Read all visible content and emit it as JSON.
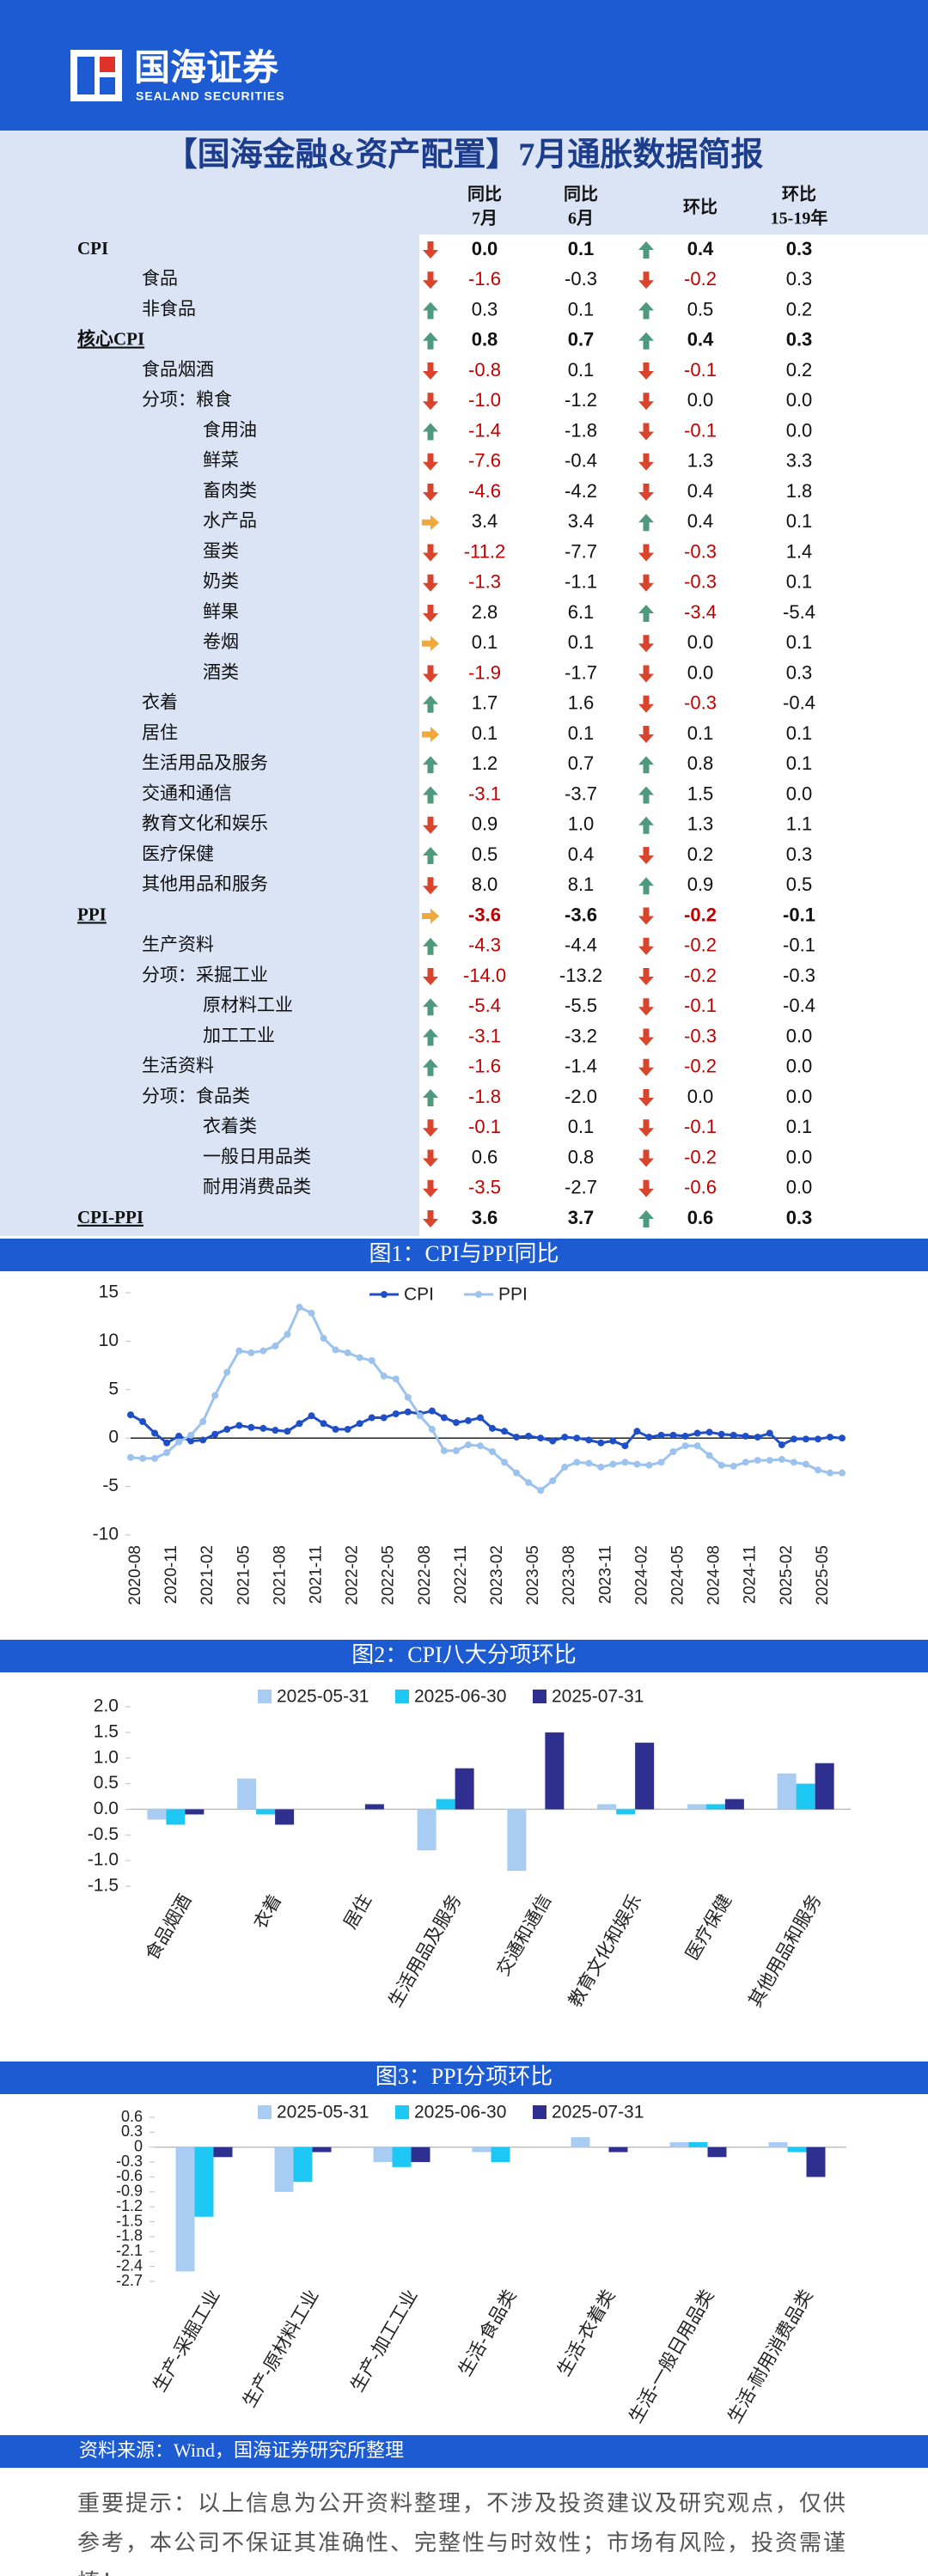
{
  "header": {
    "brand": "国海证券",
    "brand_en": "SEALAND SECURITIES"
  },
  "title": "【国海金融&资产配置】7月通胀数据简报",
  "table": {
    "columns": [
      {
        "top": "同比",
        "bottom": "7月"
      },
      {
        "top": "同比",
        "bottom": "6月"
      },
      {
        "top": "环比"
      },
      {
        "top": "环比",
        "bottom": "15-19年"
      }
    ],
    "rows": [
      {
        "label": "CPI",
        "level": 0,
        "bold": true,
        "values": [
          "0.0",
          "0.1",
          "0.4",
          "0.3"
        ],
        "arrows": [
          "down",
          "up"
        ]
      },
      {
        "label": "食品",
        "level": 1,
        "values": [
          "-1.6",
          "-0.3",
          "-0.2",
          "0.3"
        ],
        "arrows": [
          "down",
          "down"
        ]
      },
      {
        "label": "非食品",
        "level": 1,
        "values": [
          "0.3",
          "0.1",
          "0.5",
          "0.2"
        ],
        "arrows": [
          "up",
          "up"
        ]
      },
      {
        "label": "核心CPI",
        "level": 0,
        "bold": true,
        "underline": true,
        "values": [
          "0.8",
          "0.7",
          "0.4",
          "0.3"
        ],
        "arrows": [
          "up",
          "up"
        ]
      },
      {
        "label": "食品烟酒",
        "level": 1,
        "values": [
          "-0.8",
          "0.1",
          "-0.1",
          "0.2"
        ],
        "arrows": [
          "down",
          "down"
        ]
      },
      {
        "label": "分项：粮食",
        "level": 1,
        "values": [
          "-1.0",
          "-1.2",
          "0.0",
          "0.0"
        ],
        "arrows": [
          "down",
          "down"
        ]
      },
      {
        "label": "食用油",
        "level": 2,
        "values": [
          "-1.4",
          "-1.8",
          "-0.1",
          "0.0"
        ],
        "arrows": [
          "up",
          "down"
        ]
      },
      {
        "label": "鲜菜",
        "level": 2,
        "values": [
          "-7.6",
          "-0.4",
          "1.3",
          "3.3"
        ],
        "arrows": [
          "down",
          "down"
        ]
      },
      {
        "label": "畜肉类",
        "level": 2,
        "values": [
          "-4.6",
          "-4.2",
          "0.4",
          "1.8"
        ],
        "arrows": [
          "down",
          "down"
        ]
      },
      {
        "label": "水产品",
        "level": 2,
        "values": [
          "3.4",
          "3.4",
          "0.4",
          "0.1"
        ],
        "arrows": [
          "flat",
          "up"
        ]
      },
      {
        "label": "蛋类",
        "level": 2,
        "values": [
          "-11.2",
          "-7.7",
          "-0.3",
          "1.4"
        ],
        "arrows": [
          "down",
          "down"
        ]
      },
      {
        "label": "奶类",
        "level": 2,
        "values": [
          "-1.3",
          "-1.1",
          "-0.3",
          "0.1"
        ],
        "arrows": [
          "down",
          "down"
        ]
      },
      {
        "label": "鲜果",
        "level": 2,
        "values": [
          "2.8",
          "6.1",
          "-3.4",
          "-5.4"
        ],
        "arrows": [
          "down",
          "up"
        ]
      },
      {
        "label": "卷烟",
        "level": 2,
        "values": [
          "0.1",
          "0.1",
          "0.0",
          "0.1"
        ],
        "arrows": [
          "flat",
          "down"
        ]
      },
      {
        "label": "酒类",
        "level": 2,
        "values": [
          "-1.9",
          "-1.7",
          "0.0",
          "0.3"
        ],
        "arrows": [
          "down",
          "down"
        ]
      },
      {
        "label": "衣着",
        "level": 1,
        "values": [
          "1.7",
          "1.6",
          "-0.3",
          "-0.4"
        ],
        "arrows": [
          "up",
          "down"
        ]
      },
      {
        "label": "居住",
        "level": 1,
        "values": [
          "0.1",
          "0.1",
          "0.1",
          "0.1"
        ],
        "arrows": [
          "flat",
          "down"
        ]
      },
      {
        "label": "生活用品及服务",
        "level": 1,
        "values": [
          "1.2",
          "0.7",
          "0.8",
          "0.1"
        ],
        "arrows": [
          "up",
          "up"
        ]
      },
      {
        "label": "交通和通信",
        "level": 1,
        "values": [
          "-3.1",
          "-3.7",
          "1.5",
          "0.0"
        ],
        "arrows": [
          "up",
          "up"
        ]
      },
      {
        "label": "教育文化和娱乐",
        "level": 1,
        "values": [
          "0.9",
          "1.0",
          "1.3",
          "1.1"
        ],
        "arrows": [
          "down",
          "up"
        ]
      },
      {
        "label": "医疗保健",
        "level": 1,
        "values": [
          "0.5",
          "0.4",
          "0.2",
          "0.3"
        ],
        "arrows": [
          "up",
          "down"
        ]
      },
      {
        "label": "其他用品和服务",
        "level": 1,
        "values": [
          "8.0",
          "8.1",
          "0.9",
          "0.5"
        ],
        "arrows": [
          "down",
          "up"
        ]
      },
      {
        "label": "PPI",
        "level": 0,
        "bold": true,
        "underline": true,
        "values": [
          "-3.6",
          "-3.6",
          "-0.2",
          "-0.1"
        ],
        "arrows": [
          "flat",
          "down"
        ]
      },
      {
        "label": "生产资料",
        "level": 1,
        "values": [
          "-4.3",
          "-4.4",
          "-0.2",
          "-0.1"
        ],
        "arrows": [
          "up",
          "down"
        ]
      },
      {
        "label": "分项：采掘工业",
        "level": 1,
        "values": [
          "-14.0",
          "-13.2",
          "-0.2",
          "-0.3"
        ],
        "arrows": [
          "down",
          "down"
        ]
      },
      {
        "label": "原材料工业",
        "level": 2,
        "values": [
          "-5.4",
          "-5.5",
          "-0.1",
          "-0.4"
        ],
        "arrows": [
          "up",
          "down"
        ]
      },
      {
        "label": "加工工业",
        "level": 2,
        "values": [
          "-3.1",
          "-3.2",
          "-0.3",
          "0.0"
        ],
        "arrows": [
          "up",
          "down"
        ]
      },
      {
        "label": "生活资料",
        "level": 1,
        "values": [
          "-1.6",
          "-1.4",
          "-0.2",
          "0.0"
        ],
        "arrows": [
          "up",
          "down"
        ]
      },
      {
        "label": "分项：食品类",
        "level": 1,
        "values": [
          "-1.8",
          "-2.0",
          "0.0",
          "0.0"
        ],
        "arrows": [
          "up",
          "down"
        ]
      },
      {
        "label": "衣着类",
        "level": 2,
        "values": [
          "-0.1",
          "0.1",
          "-0.1",
          "0.1"
        ],
        "arrows": [
          "down",
          "down"
        ]
      },
      {
        "label": "一般日用品类",
        "level": 2,
        "values": [
          "0.6",
          "0.8",
          "-0.2",
          "0.0"
        ],
        "arrows": [
          "down",
          "down"
        ]
      },
      {
        "label": "耐用消费品类",
        "level": 2,
        "values": [
          "-3.5",
          "-2.7",
          "-0.6",
          "0.0"
        ],
        "arrows": [
          "down",
          "down"
        ]
      },
      {
        "label": "CPI-PPI",
        "level": 0,
        "bold": true,
        "underline": true,
        "values": [
          "3.6",
          "3.7",
          "0.6",
          "0.3"
        ],
        "arrows": [
          "down",
          "up"
        ]
      }
    ]
  },
  "chart_data": [
    {
      "type": "line",
      "title": "图1：CPI与PPI同比",
      "categories": [
        "2020-08",
        null,
        null,
        "2020-11",
        null,
        null,
        "2021-02",
        null,
        null,
        "2021-05",
        null,
        null,
        "2021-08",
        null,
        null,
        "2021-11",
        null,
        null,
        "2022-02",
        null,
        null,
        "2022-05",
        null,
        null,
        "2022-08",
        null,
        null,
        "2022-11",
        null,
        null,
        "2023-02",
        null,
        null,
        "2023-05",
        null,
        null,
        "2023-08",
        null,
        null,
        "2023-11",
        null,
        null,
        "2024-02",
        null,
        null,
        "2024-05",
        null,
        null,
        "2024-08",
        null,
        null,
        "2024-11",
        null,
        null,
        "2025-02",
        null,
        null,
        "2025-05",
        null,
        null
      ],
      "series": [
        {
          "name": "CPI",
          "color": "#1f4fc6",
          "values": [
            2.4,
            1.7,
            0.5,
            -0.5,
            0.2,
            -0.3,
            -0.2,
            0.4,
            0.9,
            1.3,
            1.1,
            1.0,
            0.8,
            0.7,
            1.5,
            2.3,
            1.5,
            0.9,
            0.9,
            1.5,
            2.1,
            2.1,
            2.5,
            2.7,
            2.5,
            2.8,
            2.1,
            1.6,
            1.8,
            2.1,
            1.0,
            0.7,
            0.1,
            0.2,
            0.0,
            -0.3,
            0.1,
            0.0,
            -0.2,
            -0.5,
            -0.3,
            -0.8,
            0.7,
            0.1,
            0.3,
            0.3,
            0.2,
            0.5,
            0.6,
            0.4,
            0.3,
            0.2,
            0.1,
            0.5,
            -0.7,
            -0.1,
            -0.1,
            -0.1,
            0.1,
            0.0
          ]
        },
        {
          "name": "PPI",
          "color": "#9cc3ee",
          "values": [
            -2.0,
            -2.1,
            -2.1,
            -1.5,
            -0.4,
            0.3,
            1.7,
            4.4,
            6.8,
            9.0,
            8.8,
            9.0,
            9.5,
            10.7,
            13.5,
            12.9,
            10.3,
            9.1,
            8.8,
            8.3,
            8.0,
            6.4,
            6.1,
            4.2,
            2.3,
            0.9,
            -1.3,
            -1.3,
            -0.7,
            -0.8,
            -1.4,
            -2.5,
            -3.6,
            -4.6,
            -5.4,
            -4.4,
            -3.0,
            -2.5,
            -2.6,
            -3.0,
            -2.7,
            -2.5,
            -2.7,
            -2.8,
            -2.5,
            -1.4,
            -0.8,
            -0.8,
            -1.8,
            -2.8,
            -2.9,
            -2.5,
            -2.3,
            -2.3,
            -2.2,
            -2.5,
            -2.7,
            -3.3,
            -3.6,
            -3.6
          ]
        }
      ],
      "ylim": [
        -10,
        15
      ],
      "yticks": [
        -10,
        -5,
        0,
        5,
        10,
        15
      ],
      "legend": "top"
    },
    {
      "type": "bar",
      "title": "图2：CPI八大分项环比",
      "categories": [
        "食品烟酒",
        "衣着",
        "居住",
        "生活用品及服务",
        "交通和通信",
        "教育文化和娱乐",
        "医疗保健",
        "其他用品和服务"
      ],
      "series": [
        {
          "name": "2025-05-31",
          "color": "#a9cdf2",
          "values": [
            -0.2,
            0.6,
            0.0,
            -0.8,
            -1.2,
            0.1,
            0.1,
            0.7
          ]
        },
        {
          "name": "2025-06-30",
          "color": "#1ec8f5",
          "values": [
            -0.3,
            -0.1,
            0.0,
            0.2,
            0.0,
            -0.1,
            0.1,
            0.5
          ]
        },
        {
          "name": "2025-07-31",
          "color": "#2e2f8f",
          "values": [
            -0.1,
            -0.3,
            0.1,
            0.8,
            1.5,
            1.3,
            0.2,
            0.9
          ]
        }
      ],
      "ylim": [
        -1.5,
        2.0
      ],
      "yticks": [
        -1.5,
        {
          "value": -1,
          "label": "-1.0"
        },
        -0.5,
        {
          "value": 0,
          "label": "0.0"
        },
        0.5,
        {
          "value": 1,
          "label": "1.0"
        },
        1.5,
        {
          "value": 2,
          "label": "2.0"
        }
      ],
      "legend": "top"
    },
    {
      "type": "bar",
      "title": "图3：PPI分项环比",
      "categories": [
        "生产-采掘工业",
        "生产-原材料工业",
        "生产-加工工业",
        "生活-食品类",
        "生活-衣着类",
        "生活-一般日用品类",
        "生活-耐用消费品类"
      ],
      "series": [
        {
          "name": "2025-05-31",
          "color": "#a9cdf2",
          "values": [
            -2.5,
            -0.9,
            -0.3,
            -0.1,
            0.2,
            0.1,
            0.1
          ]
        },
        {
          "name": "2025-06-30",
          "color": "#1ec8f5",
          "values": [
            -1.4,
            -0.7,
            -0.4,
            -0.3,
            0.0,
            0.1,
            -0.1
          ]
        },
        {
          "name": "2025-07-31",
          "color": "#2e2f8f",
          "values": [
            -0.2,
            -0.1,
            -0.3,
            0.0,
            -0.1,
            -0.2,
            -0.6
          ]
        }
      ],
      "ylim": [
        -2.7,
        0.6
      ],
      "yticks": [
        -2.7,
        -2.4,
        -2.1,
        -1.8,
        -1.5,
        -1.2,
        -0.9,
        -0.6,
        -0.3,
        0,
        0.3,
        0.6
      ],
      "legend": "top"
    }
  ],
  "source": "资料来源：Wind，国海证券研究所整理",
  "note": "重要提示：以上信息为公开资料整理，不涉及投资建议及研究观点，仅供参考，本公司不保证其准确性、完整性与时效性；市场有风险，投资需谨慎！"
}
